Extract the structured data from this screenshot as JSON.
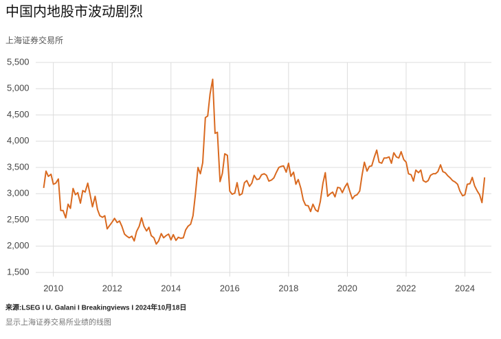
{
  "chart_data": {
    "type": "line",
    "title": "中国内地股市波动剧烈",
    "subtitle": "上海证券交易所",
    "source": "来源:LSEG I U. Galani I Breakingviews I 2024年10月18日",
    "caption": "显示上海证券交易所业绩的线图",
    "x": [
      2009.67,
      2009.75,
      2009.83,
      2009.92,
      2010.0,
      2010.08,
      2010.17,
      2010.25,
      2010.33,
      2010.42,
      2010.5,
      2010.58,
      2010.67,
      2010.75,
      2010.83,
      2010.92,
      2011.0,
      2011.08,
      2011.17,
      2011.25,
      2011.33,
      2011.42,
      2011.5,
      2011.58,
      2011.67,
      2011.75,
      2011.83,
      2011.92,
      2012.0,
      2012.08,
      2012.17,
      2012.25,
      2012.33,
      2012.42,
      2012.5,
      2012.58,
      2012.67,
      2012.75,
      2012.83,
      2012.92,
      2013.0,
      2013.08,
      2013.17,
      2013.25,
      2013.33,
      2013.42,
      2013.5,
      2013.58,
      2013.67,
      2013.75,
      2013.83,
      2013.92,
      2014.0,
      2014.08,
      2014.17,
      2014.25,
      2014.33,
      2014.42,
      2014.5,
      2014.58,
      2014.67,
      2014.75,
      2014.83,
      2014.92,
      2015.0,
      2015.08,
      2015.17,
      2015.25,
      2015.33,
      2015.42,
      2015.5,
      2015.58,
      2015.67,
      2015.75,
      2015.83,
      2015.92,
      2016.0,
      2016.08,
      2016.17,
      2016.25,
      2016.33,
      2016.42,
      2016.5,
      2016.58,
      2016.67,
      2016.75,
      2016.83,
      2016.92,
      2017.0,
      2017.08,
      2017.17,
      2017.25,
      2017.33,
      2017.42,
      2017.5,
      2017.58,
      2017.67,
      2017.75,
      2017.83,
      2017.92,
      2018.0,
      2018.08,
      2018.17,
      2018.25,
      2018.33,
      2018.42,
      2018.5,
      2018.58,
      2018.67,
      2018.75,
      2018.83,
      2018.92,
      2019.0,
      2019.08,
      2019.17,
      2019.25,
      2019.33,
      2019.42,
      2019.5,
      2019.58,
      2019.67,
      2019.75,
      2019.83,
      2019.92,
      2020.0,
      2020.08,
      2020.17,
      2020.25,
      2020.33,
      2020.42,
      2020.5,
      2020.58,
      2020.67,
      2020.75,
      2020.83,
      2020.92,
      2021.0,
      2021.08,
      2021.17,
      2021.25,
      2021.33,
      2021.42,
      2021.5,
      2021.58,
      2021.67,
      2021.75,
      2021.83,
      2021.92,
      2022.0,
      2022.08,
      2022.17,
      2022.25,
      2022.33,
      2022.42,
      2022.5,
      2022.58,
      2022.67,
      2022.75,
      2022.83,
      2022.92,
      2023.0,
      2023.08,
      2023.17,
      2023.25,
      2023.33,
      2023.42,
      2023.5,
      2023.58,
      2023.67,
      2023.75,
      2023.83,
      2023.92,
      2024.0,
      2024.08,
      2024.17,
      2024.25,
      2024.33,
      2024.42,
      2024.5,
      2024.58,
      2024.67
    ],
    "series": [
      {
        "color": "#d9691f",
        "values": [
          3110,
          3430,
          3330,
          3370,
          3180,
          3200,
          3280,
          2680,
          2680,
          2540,
          2800,
          2720,
          3100,
          2980,
          3020,
          2820,
          3060,
          3030,
          3200,
          2980,
          2750,
          2950,
          2700,
          2580,
          2550,
          2580,
          2330,
          2400,
          2460,
          2530,
          2450,
          2480,
          2380,
          2230,
          2190,
          2160,
          2190,
          2100,
          2280,
          2380,
          2540,
          2380,
          2290,
          2360,
          2200,
          2160,
          2040,
          2100,
          2240,
          2160,
          2200,
          2230,
          2120,
          2220,
          2110,
          2170,
          2150,
          2160,
          2310,
          2380,
          2420,
          2580,
          2980,
          3500,
          3380,
          3590,
          4450,
          4480,
          4900,
          5180,
          4150,
          4170,
          3230,
          3390,
          3760,
          3730,
          3050,
          2990,
          3010,
          3210,
          2970,
          3000,
          3210,
          3250,
          3140,
          3200,
          3350,
          3270,
          3280,
          3360,
          3380,
          3350,
          3240,
          3260,
          3300,
          3400,
          3500,
          3520,
          3530,
          3410,
          3580,
          3330,
          3410,
          3180,
          3270,
          3100,
          2880,
          2780,
          2770,
          2660,
          2800,
          2690,
          2660,
          2850,
          3200,
          3400,
          2950,
          3000,
          3030,
          2940,
          3120,
          3110,
          3020,
          3130,
          3200,
          3050,
          2900,
          2960,
          2980,
          3050,
          3350,
          3600,
          3430,
          3520,
          3530,
          3700,
          3830,
          3600,
          3580,
          3680,
          3680,
          3700,
          3580,
          3780,
          3700,
          3680,
          3800,
          3650,
          3600,
          3380,
          3360,
          3240,
          3450,
          3400,
          3450,
          3250,
          3220,
          3250,
          3350,
          3380,
          3380,
          3420,
          3550,
          3420,
          3400,
          3340,
          3300,
          3250,
          3220,
          3180,
          3050,
          2960,
          2980,
          3180,
          3190,
          3310,
          3150,
          3050,
          2980,
          2830,
          3310
        ]
      }
    ],
    "xlim": [
      2009.4,
      2024.9
    ],
    "xticks": [
      2010,
      2012,
      2014,
      2016,
      2018,
      2020,
      2022,
      2024
    ],
    "ylim": [
      1500,
      5500
    ],
    "yticks": [
      {
        "value": 1500,
        "label": "1,500"
      },
      {
        "value": 2000,
        "label": "2,000"
      },
      {
        "value": 2500,
        "label": "2,500"
      },
      {
        "value": 3000,
        "label": "3,000"
      },
      {
        "value": 3500,
        "label": "3,500"
      },
      {
        "value": 4000,
        "label": "4,000"
      },
      {
        "value": 4500,
        "label": "4,500"
      },
      {
        "value": 5000,
        "label": "5,000"
      },
      {
        "value": 5500,
        "label": "5,500"
      }
    ],
    "grid": true
  }
}
